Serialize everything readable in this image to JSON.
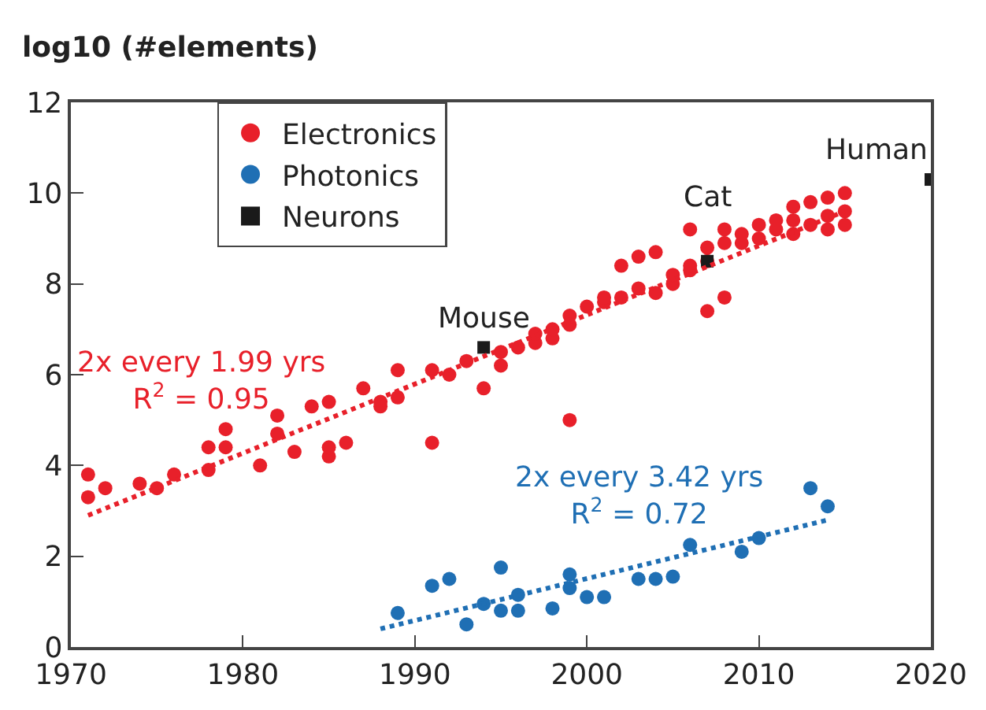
{
  "chart_data": {
    "type": "scatter",
    "ylabel": "log10 (#elements)",
    "xlim": [
      1970,
      2020
    ],
    "xticks": [
      1970,
      1980,
      1990,
      2000,
      2010,
      2020
    ],
    "ylim": [
      0,
      12
    ],
    "yticks": [
      0,
      2,
      4,
      6,
      8,
      10,
      12
    ],
    "legend": "top left",
    "series": [
      {
        "name": "Electronics",
        "color": "#e8202a",
        "marker": "circle",
        "x": [
          1971,
          1971,
          1972,
          1974,
          1975,
          1976,
          1978,
          1978,
          1979,
          1979,
          1981,
          1982,
          1982,
          1983,
          1984,
          1985,
          1985,
          1985,
          1986,
          1987,
          1988,
          1988,
          1989,
          1989,
          1991,
          1991,
          1992,
          1993,
          1994,
          1995,
          1995,
          1996,
          1997,
          1997,
          1998,
          1998,
          1999,
          1999,
          1999,
          2000,
          2001,
          2001,
          2002,
          2002,
          2003,
          2003,
          2004,
          2004,
          2005,
          2005,
          2006,
          2006,
          2006,
          2007,
          2007,
          2007,
          2008,
          2008,
          2008,
          2009,
          2009,
          2010,
          2010,
          2011,
          2011,
          2012,
          2012,
          2012,
          2013,
          2013,
          2014,
          2014,
          2014,
          2015,
          2015,
          2015
        ],
        "values": [
          3.8,
          3.3,
          3.5,
          3.6,
          3.5,
          3.8,
          3.9,
          4.4,
          4.8,
          4.4,
          4.0,
          5.1,
          4.7,
          4.3,
          5.3,
          5.4,
          4.2,
          4.4,
          4.5,
          5.7,
          5.4,
          5.3,
          6.1,
          5.5,
          4.5,
          6.1,
          6.0,
          6.3,
          5.7,
          6.5,
          6.2,
          6.6,
          6.7,
          6.9,
          6.8,
          7.0,
          7.3,
          5.0,
          7.1,
          7.5,
          7.6,
          7.7,
          8.4,
          7.7,
          8.6,
          7.9,
          8.7,
          7.8,
          8.0,
          8.2,
          8.3,
          9.2,
          8.4,
          7.4,
          8.8,
          8.5,
          9.2,
          7.7,
          8.9,
          8.9,
          9.1,
          9.3,
          9.0,
          9.2,
          9.4,
          9.7,
          9.1,
          9.4,
          9.8,
          9.3,
          9.9,
          9.5,
          9.2,
          10.0,
          9.6,
          9.3
        ]
      },
      {
        "name": "Photonics",
        "color": "#1f6fb4",
        "marker": "circle",
        "x": [
          1989,
          1991,
          1992,
          1993,
          1994,
          1995,
          1995,
          1996,
          1996,
          1998,
          1999,
          1999,
          2000,
          2001,
          2003,
          2004,
          2005,
          2006,
          2009,
          2010,
          2013,
          2014
        ],
        "values": [
          0.75,
          1.35,
          1.5,
          0.5,
          0.95,
          1.75,
          0.8,
          1.15,
          0.8,
          0.85,
          1.6,
          1.3,
          1.1,
          1.1,
          1.5,
          1.5,
          1.55,
          2.25,
          2.1,
          2.4,
          3.5,
          3.1
        ]
      },
      {
        "name": "Neurons",
        "color": "#1a1a1a",
        "marker": "square",
        "x": [
          1994,
          2007,
          2020
        ],
        "values": [
          6.6,
          8.5,
          10.3
        ]
      },
      {
        "name": "2x every 1.99 yrs\nR$^{2}$ = 0.95",
        "type": "line",
        "line_style": "dotted",
        "color": "#e8202a",
        "x": [
          1971,
          2015
        ],
        "values": [
          2.9,
          9.6
        ]
      },
      {
        "name": "2x every 3.42 yrs\nR$^{2}$ = 0.72",
        "type": "line",
        "line_style": "dotted",
        "color": "#1f6fb4",
        "x": [
          1988,
          2014
        ],
        "values": [
          0.4,
          2.8
        ]
      }
    ],
    "annotations": [
      {
        "text": "Mouse",
        "x": 1994,
        "y": 6.6
      },
      {
        "text": "Cat",
        "x": 2007,
        "y": 8.5
      },
      {
        "text": "Human",
        "x": 2020,
        "y": 10.3
      }
    ]
  }
}
